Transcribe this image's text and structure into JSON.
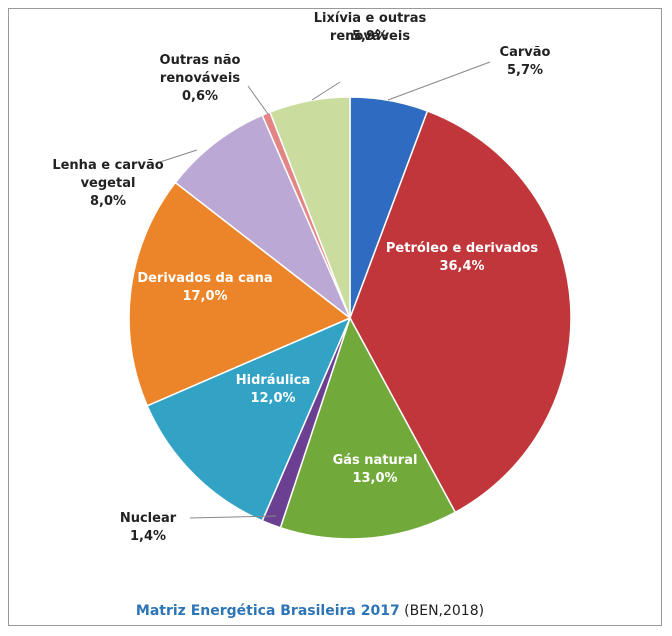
{
  "chart_data": {
    "type": "pie",
    "categories": [
      "Carvão",
      "Petróleo e derivados",
      "Gás natural",
      "Nuclear",
      "Hidráulica",
      "Derivados da cana",
      "Lenha e carvão vegetal",
      "Outras não renováveis",
      "Lixívia e outras renováveis"
    ],
    "values": [
      5.7,
      36.4,
      13.0,
      1.4,
      12.0,
      17.0,
      8.0,
      0.6,
      5.9
    ],
    "value_labels": [
      "5,7%",
      "36,4%",
      "13,0%",
      "1,4%",
      "12,0%",
      "17,0%",
      "8,0%",
      "0,6%",
      "5,9%"
    ],
    "colors": [
      "#2f6cc1",
      "#c0363b",
      "#72a93b",
      "#6b3f92",
      "#33a3c5",
      "#ec8529",
      "#bba8d4",
      "#e38585",
      "#cadd9f"
    ],
    "caption": {
      "title": "Matriz Energética Brasileira 2017",
      "source": "(BEN,2018)"
    }
  }
}
